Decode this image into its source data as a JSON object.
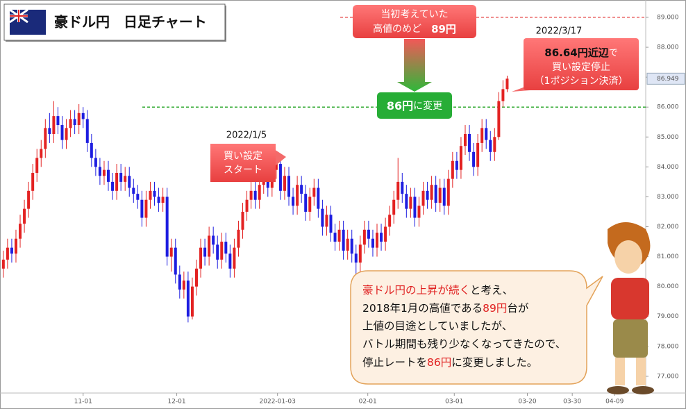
{
  "chart_data": {
    "type": "candlestick",
    "title": "豪ドル円　日足チャート",
    "xlim": [
      -0.8,
      153
    ],
    "ylim": [
      76.44,
      89.58
    ],
    "xticks": [
      {
        "value": 19,
        "label": "11-01"
      },
      {
        "value": 41.3,
        "label": "12-01"
      },
      {
        "value": 65.3,
        "label": "2022-01-03"
      },
      {
        "value": 86.8,
        "label": "02-01"
      },
      {
        "value": 107.4,
        "label": "03-01"
      },
      {
        "value": 124.8,
        "label": "03-20"
      },
      {
        "value": 135.5,
        "label": "03-30"
      },
      {
        "value": 145.6,
        "label": "04-09"
      }
    ],
    "yticks": [
      {
        "value": 77,
        "label": "77.000"
      },
      {
        "value": 78,
        "label": "78.000"
      },
      {
        "value": 79,
        "label": "79.000"
      },
      {
        "value": 80,
        "label": "80.000"
      },
      {
        "value": 81,
        "label": "81.000"
      },
      {
        "value": 82,
        "label": "82.000"
      },
      {
        "value": 83,
        "label": "83.000"
      },
      {
        "value": 84,
        "label": "84.000"
      },
      {
        "value": 85,
        "label": "85.000"
      },
      {
        "value": 86,
        "label": "86.000"
      },
      {
        "value": 87,
        "label": "87.000"
      },
      {
        "value": 88,
        "label": "88.000"
      },
      {
        "value": 89,
        "label": "89.000"
      }
    ],
    "up_color": "#e32222",
    "down_color": "#1d1de0",
    "open": [
      80.6,
      80.9,
      81.3,
      81.1,
      81.6,
      82.1,
      82.6,
      83.2,
      83.8,
      84.3,
      84.6,
      85.3,
      85.1,
      85.7,
      85.4,
      84.9,
      85.3,
      85.6,
      85.4,
      85.8,
      85.6,
      84.8,
      84.3,
      84.0,
      83.7,
      83.9,
      83.5,
      83.2,
      83.8,
      83.5,
      83.7,
      83.3,
      83.1,
      82.9,
      82.3,
      82.9,
      83.2,
      83.0,
      82.8,
      83.0,
      81.0,
      81.3,
      80.4,
      79.9,
      80.2,
      79.0,
      80.0,
      80.6,
      81.3,
      81.0,
      81.7,
      81.4,
      80.9,
      81.5,
      81.1,
      80.6,
      81.3,
      81.9,
      82.5,
      82.9,
      83.2,
      82.9,
      83.4,
      83.6,
      83.3,
      83.9,
      84.1,
      83.2,
      83.7,
      83.0,
      82.7,
      83.4,
      83.1,
      82.5,
      83.0,
      83.3,
      82.6,
      82.0,
      82.4,
      81.8,
      81.5,
      81.9,
      81.2,
      81.6,
      81.1,
      80.8,
      81.4,
      81.9,
      81.6,
      81.3,
      81.8,
      81.5,
      82.0,
      82.4,
      82.9,
      83.5,
      83.1,
      82.6,
      83.0,
      82.3,
      82.7,
      83.2,
      82.9,
      83.4,
      82.8,
      83.3,
      82.7,
      83.6,
      84.2,
      83.9,
      84.7,
      85.1,
      84.5,
      84.0,
      84.8,
      85.3,
      84.9,
      84.5,
      85.0,
      86.2,
      86.6
    ],
    "high": [
      81.2,
      81.6,
      81.6,
      81.9,
      82.4,
      82.9,
      83.5,
      84.1,
      84.6,
      84.9,
      85.6,
      85.8,
      86.2,
      86.0,
      85.7,
      85.6,
      85.9,
      85.9,
      86.1,
      86.0,
      85.9,
      85.1,
      84.6,
      84.3,
      84.2,
      84.2,
      83.8,
      84.1,
      84.1,
      84.0,
      84.0,
      83.6,
      83.4,
      83.2,
      83.2,
      83.5,
      83.5,
      83.3,
      83.3,
      83.3,
      81.6,
      81.6,
      80.7,
      80.5,
      80.5,
      80.3,
      80.9,
      81.6,
      81.6,
      82.0,
      82.0,
      81.7,
      81.8,
      81.8,
      81.4,
      81.6,
      82.2,
      82.8,
      83.2,
      83.5,
      83.5,
      83.7,
      83.9,
      83.9,
      84.2,
      84.4,
      84.4,
      84.0,
      84.0,
      83.3,
      83.7,
      83.7,
      83.4,
      83.3,
      83.6,
      83.6,
      82.9,
      82.7,
      82.7,
      82.1,
      82.2,
      82.2,
      81.9,
      81.9,
      81.4,
      81.7,
      82.2,
      82.2,
      81.9,
      82.1,
      82.1,
      82.3,
      82.7,
      83.2,
      84.3,
      83.8,
      83.4,
      83.3,
      83.3,
      83.0,
      83.5,
      83.5,
      83.7,
      83.7,
      83.6,
      83.6,
      83.9,
      84.5,
      84.5,
      85.0,
      85.4,
      85.4,
      84.8,
      85.1,
      85.6,
      85.6,
      85.2,
      85.3,
      86.5,
      86.9,
      87.05
    ],
    "low": [
      80.3,
      80.6,
      80.8,
      80.8,
      81.3,
      81.8,
      82.3,
      82.9,
      83.5,
      84.0,
      84.3,
      84.8,
      84.8,
      85.1,
      84.6,
      84.6,
      85.0,
      85.1,
      85.1,
      85.3,
      84.5,
      84.0,
      83.7,
      83.4,
      83.4,
      83.2,
      82.9,
      82.9,
      83.2,
      83.2,
      83.0,
      82.8,
      82.6,
      82.0,
      82.0,
      82.6,
      82.7,
      82.5,
      82.5,
      80.7,
      80.5,
      80.1,
      79.6,
      79.6,
      78.8,
      78.9,
      79.7,
      80.3,
      80.7,
      80.7,
      81.1,
      80.6,
      80.6,
      80.8,
      80.3,
      80.3,
      81.0,
      81.6,
      82.2,
      82.6,
      82.6,
      82.6,
      83.1,
      83.0,
      83.0,
      83.6,
      82.9,
      82.9,
      82.7,
      82.4,
      82.4,
      82.8,
      82.2,
      82.2,
      82.7,
      82.3,
      81.7,
      81.7,
      81.5,
      81.2,
      81.2,
      80.9,
      80.9,
      80.8,
      80.3,
      80.5,
      81.1,
      81.3,
      81.0,
      81.0,
      81.2,
      81.2,
      81.7,
      82.1,
      82.6,
      82.8,
      82.3,
      82.3,
      82.0,
      82.0,
      82.4,
      82.6,
      82.6,
      82.5,
      82.5,
      82.4,
      82.4,
      83.3,
      83.6,
      83.6,
      84.4,
      84.2,
      83.7,
      83.7,
      84.5,
      84.6,
      84.2,
      84.2,
      84.9,
      86.0,
      86.5
    ],
    "close": [
      80.9,
      81.3,
      81.1,
      81.6,
      82.1,
      82.6,
      83.2,
      83.8,
      84.3,
      84.6,
      85.3,
      85.1,
      85.7,
      85.4,
      84.9,
      85.3,
      85.6,
      85.4,
      85.8,
      85.6,
      84.8,
      84.3,
      84.0,
      83.7,
      83.9,
      83.5,
      83.2,
      83.8,
      83.5,
      83.7,
      83.3,
      83.1,
      82.9,
      82.3,
      82.9,
      83.2,
      83.0,
      82.8,
      83.0,
      81.0,
      81.3,
      80.4,
      79.9,
      80.2,
      79.0,
      80.0,
      80.6,
      81.3,
      81.0,
      81.7,
      81.4,
      80.9,
      81.5,
      81.1,
      80.6,
      81.3,
      81.9,
      82.5,
      82.9,
      83.2,
      82.9,
      83.4,
      83.6,
      83.3,
      83.9,
      84.1,
      83.2,
      83.7,
      83.0,
      82.7,
      83.4,
      83.1,
      82.5,
      83.0,
      83.3,
      82.6,
      82.0,
      82.4,
      81.8,
      81.5,
      81.9,
      81.2,
      81.6,
      81.1,
      80.8,
      81.4,
      81.9,
      81.6,
      81.3,
      81.8,
      81.5,
      82.0,
      82.4,
      82.9,
      83.5,
      83.1,
      82.6,
      83.0,
      82.3,
      82.7,
      83.2,
      82.9,
      83.4,
      82.8,
      83.3,
      82.7,
      83.6,
      84.2,
      83.9,
      84.7,
      85.1,
      84.5,
      84.0,
      84.8,
      85.3,
      84.9,
      84.5,
      85.0,
      86.2,
      86.6,
      86.95
    ],
    "last_price": {
      "value": 86.949,
      "label": "86.949"
    },
    "target_line": 89,
    "target_color": "#e02020",
    "stop_line": 86,
    "stop_color": "#2ea82e",
    "annotations": {
      "target_box": {
        "line1": "当初考えていた",
        "line2a": "高値のめど　",
        "line2b": "89円"
      },
      "stop_box": {
        "bold": "86円",
        "rest": "に変更"
      },
      "end_date": "2022/3/17",
      "end_box": {
        "bold": "86.64円近辺",
        "tail": "で",
        "line2": "買い設定停止",
        "line3": "（1ポジション決済）"
      },
      "start_date": "2022/1/5",
      "start_box": {
        "line1": "買い設定",
        "line2": "スタート"
      },
      "comment": {
        "l1a": "豪ドル円の上昇が続く",
        "l1b": "と考え、",
        "l2a": "2018年1月の高値である",
        "l2b": "89円",
        "l2c": "台が",
        "l3": "上値の目途としていましたが、",
        "l4": "バトル期間も残り少なくなってきたので、",
        "l5a": "停止レートを",
        "l5b": "86円",
        "l5c": "に変更しました。",
        "highlight": "#e02020"
      }
    }
  }
}
